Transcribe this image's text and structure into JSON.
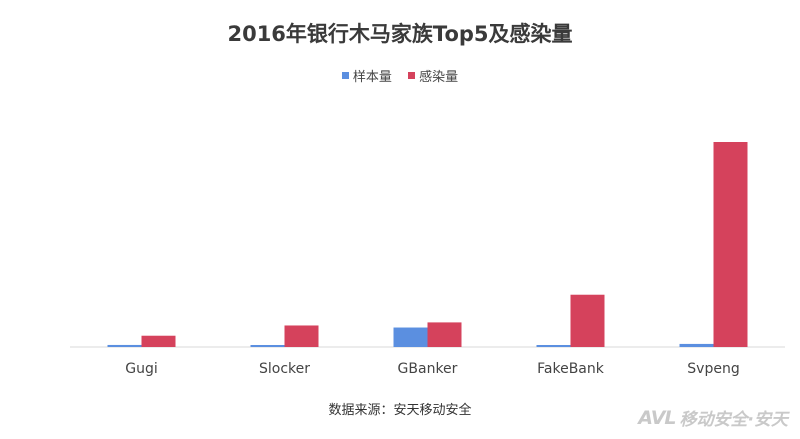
{
  "chart_data": {
    "type": "bar",
    "title": "2016年银行木马家族Top5及感染量",
    "categories": [
      "Gugi",
      "Slocker",
      "GBanker",
      "FakeBank",
      "Svpeng"
    ],
    "series": [
      {
        "name": "样本量",
        "color": "#5b8fe0",
        "values": [
          1,
          0.5,
          9.5,
          0.5,
          1.5
        ]
      },
      {
        "name": "感染量",
        "color": "#d5425c",
        "values": [
          5.5,
          10.5,
          12,
          25.5,
          100
        ]
      }
    ],
    "ylim": [
      0,
      100
    ],
    "grid": false,
    "legend_position": "top"
  },
  "source_note": "数据来源：安天移动安全",
  "watermark": {
    "logo": "AVL",
    "text": "移动安全·安天"
  }
}
